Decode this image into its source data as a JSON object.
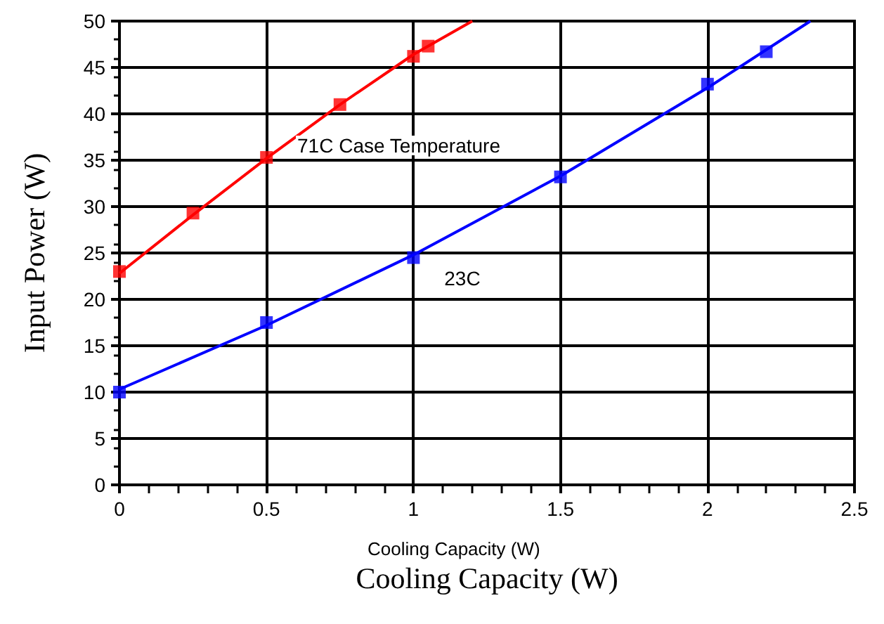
{
  "chart_data": {
    "type": "scatter",
    "xlabel": "Cooling Capacity (W)",
    "ylabel": "Input Power (W)",
    "xlim": [
      0,
      2.5
    ],
    "xticks": [
      0,
      0.5,
      1,
      1.5,
      2,
      2.5
    ],
    "ylim": [
      0,
      50
    ],
    "yticks": [
      0,
      5,
      10,
      15,
      20,
      25,
      30,
      35,
      40,
      45,
      50
    ],
    "grid": true,
    "marker": "square",
    "series": [
      {
        "color": "#ff0000",
        "x": [
          0,
          0.25,
          0.5,
          0.75,
          1,
          1.05
        ],
        "values": [
          23,
          29.3,
          35.3,
          41,
          46.2,
          47.3
        ]
      },
      {
        "color": "#0000ff",
        "x": [
          0,
          0.5,
          1,
          1.5,
          2,
          2.2
        ],
        "values": [
          10,
          17.5,
          24.5,
          33.2,
          43.2,
          46.7
        ]
      },
      {
        "type": "line",
        "marker": "none",
        "color": "#ff0000",
        "x": [
          0,
          0.25,
          0.5,
          0.75,
          1,
          1.2
        ],
        "values": [
          22.8,
          29.1,
          35.2,
          41,
          46.4,
          50
        ]
      },
      {
        "type": "line",
        "marker": "none",
        "color": "#0000ff",
        "x": [
          0,
          0.5,
          1,
          1.5,
          2,
          2.35
        ],
        "values": [
          10.3,
          17.2,
          24.8,
          33.3,
          42.8,
          50
        ]
      }
    ],
    "annotations": [
      "71C Case Temperature",
      "23C",
      "Cooling Capacity (W)"
    ]
  }
}
